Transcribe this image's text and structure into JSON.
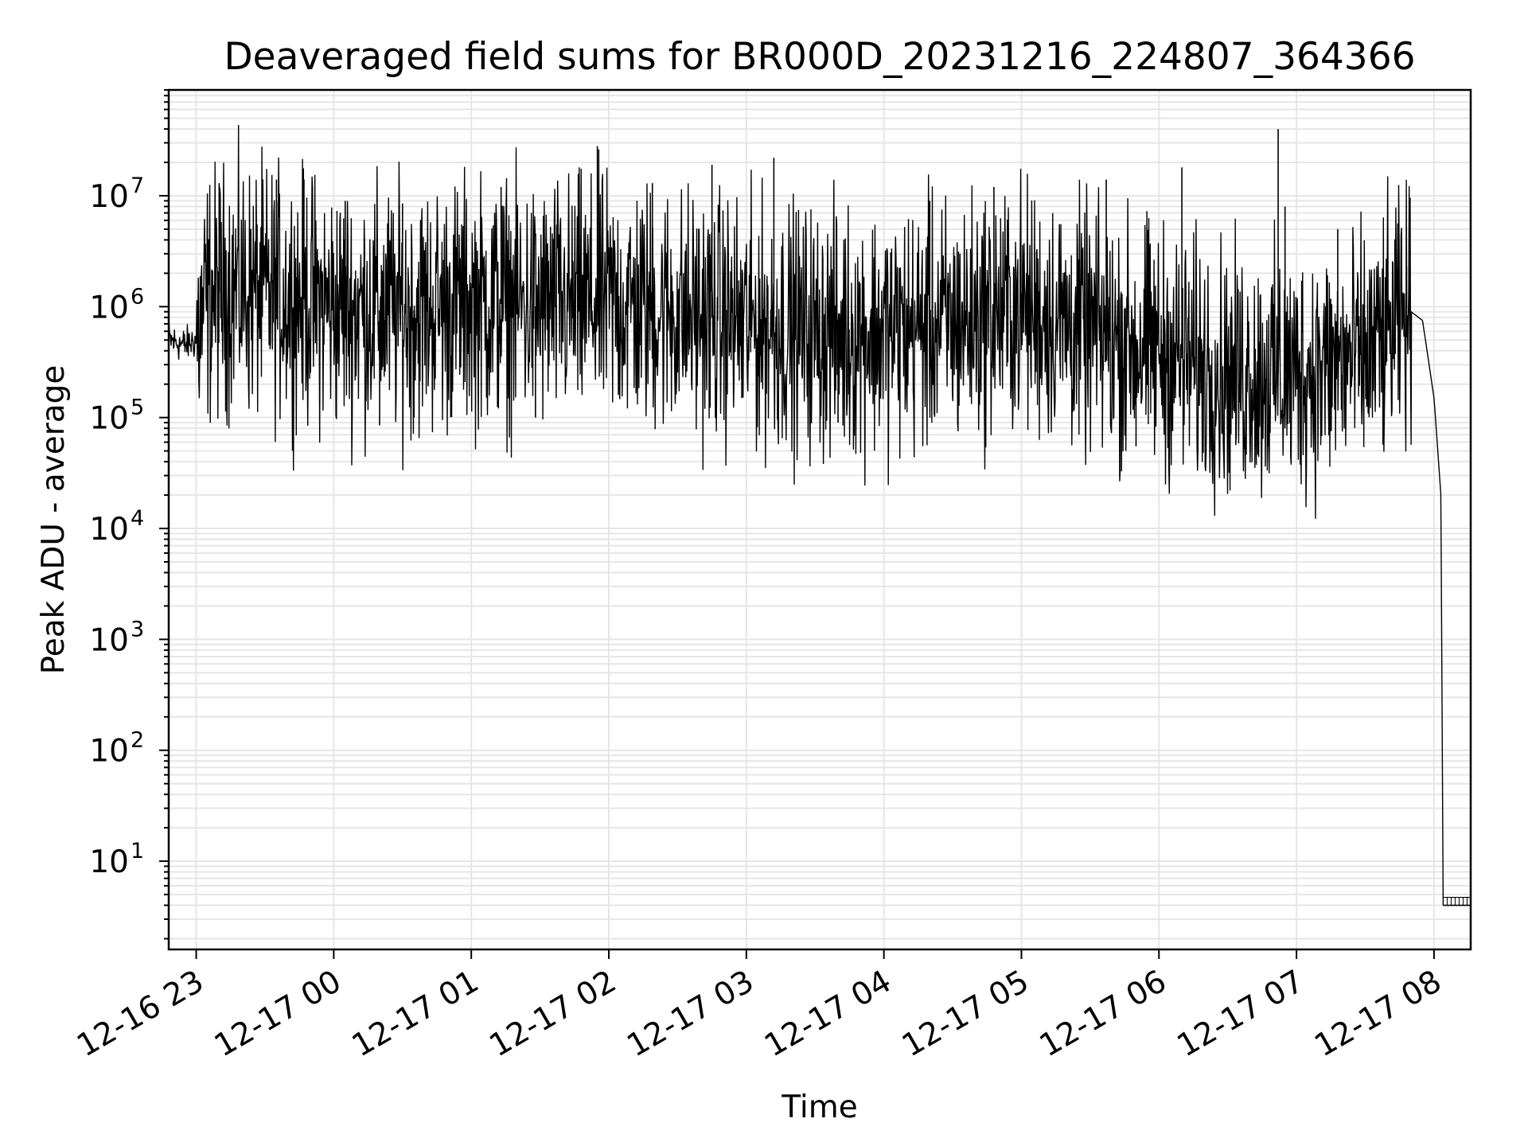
{
  "chart_data": {
    "type": "line",
    "title": "Deaveraged field sums for BR000D_20231216_224807_364366",
    "xlabel": "Time",
    "ylabel": "Peak ADU - average",
    "yscale": "log",
    "ylim": [
      1.6,
      90000000
    ],
    "xlim": [
      "2023-12-16 22:48",
      "2023-12-17 08:16"
    ],
    "grid": true,
    "x_ticks": [
      "12-16 23",
      "12-17 00",
      "12-17 01",
      "12-17 02",
      "12-17 03",
      "12-17 04",
      "12-17 05",
      "12-17 06",
      "12-17 07",
      "12-17 08"
    ],
    "y_tick_base": "10",
    "y_tick_exponents": [
      "1",
      "2",
      "3",
      "4",
      "5",
      "6",
      "7"
    ],
    "line_color": "#000000",
    "grid_color": "#e6e6e6",
    "series": [
      {
        "x": [
          "2023-12-16 22:48",
          "2023-12-16 22:55",
          "2023-12-16 23:00",
          "2023-12-16 23:05",
          "2023-12-16 23:15",
          "2023-12-16 23:30",
          "2023-12-16 23:45",
          "2023-12-17 00:00",
          "2023-12-17 00:30",
          "2023-12-17 01:00",
          "2023-12-17 01:30",
          "2023-12-17 02:00",
          "2023-12-17 02:30",
          "2023-12-17 03:00",
          "2023-12-17 03:30",
          "2023-12-17 04:00",
          "2023-12-17 04:30",
          "2023-12-17 05:00",
          "2023-12-17 05:30",
          "2023-12-17 06:00",
          "2023-12-17 06:30",
          "2023-12-17 07:00",
          "2023-12-17 07:30",
          "2023-12-17 07:50",
          "2023-12-17 07:55",
          "2023-12-17 08:00",
          "2023-12-17 08:03",
          "2023-12-17 08:04",
          "2023-12-17 08:16"
        ],
        "y": [
          500000,
          450000,
          500000,
          1200000,
          1500000,
          1300000,
          1200000,
          1000000,
          900000,
          1100000,
          1000000,
          1100000,
          900000,
          700000,
          600000,
          600000,
          700000,
          1000000,
          600000,
          400000,
          250000,
          250000,
          350000,
          900000,
          750000,
          150000,
          20000,
          4,
          4
        ]
      }
    ],
    "spikes": [
      {
        "x": "2023-12-16 23:10",
        "y": 13000000
      },
      {
        "x": "2023-12-16 23:35",
        "y": 14000000
      },
      {
        "x": "2023-12-16 23:47",
        "y": 14000000
      },
      {
        "x": "2023-12-17 00:05",
        "y": 9000000
      },
      {
        "x": "2023-12-17 00:30",
        "y": 8500000
      },
      {
        "x": "2023-12-17 01:13",
        "y": 12000000
      },
      {
        "x": "2023-12-17 01:55",
        "y": 28000000
      },
      {
        "x": "2023-12-17 02:19",
        "y": 13000000
      },
      {
        "x": "2023-12-17 02:45",
        "y": 19000000
      },
      {
        "x": "2023-12-17 03:12",
        "y": 22000000
      },
      {
        "x": "2023-12-17 04:20",
        "y": 9000000
      },
      {
        "x": "2023-12-17 04:48",
        "y": 12000000
      },
      {
        "x": "2023-12-17 05:37",
        "y": 14000000
      },
      {
        "x": "2023-12-17 06:10",
        "y": 18000000
      },
      {
        "x": "2023-12-17 06:52",
        "y": 40000000
      },
      {
        "x": "2023-12-17 06:55",
        "y": 8000000
      },
      {
        "x": "2023-12-17 07:18",
        "y": 5000000
      },
      {
        "x": "2023-12-17 07:48",
        "y": 2300000
      }
    ],
    "dips": [
      {
        "x": "2023-12-17 00:20",
        "y": 85000
      },
      {
        "x": "2023-12-17 00:35",
        "y": 100000
      },
      {
        "x": "2023-12-17 01:28",
        "y": 100000
      },
      {
        "x": "2023-12-17 02:58",
        "y": 150000
      },
      {
        "x": "2023-12-17 03:40",
        "y": 90000
      },
      {
        "x": "2023-12-17 05:50",
        "y": 55000
      },
      {
        "x": "2023-12-17 06:40",
        "y": 70000
      },
      {
        "x": "2023-12-17 07:02",
        "y": 60000
      },
      {
        "x": "2023-12-17 07:15",
        "y": 75000
      }
    ]
  }
}
